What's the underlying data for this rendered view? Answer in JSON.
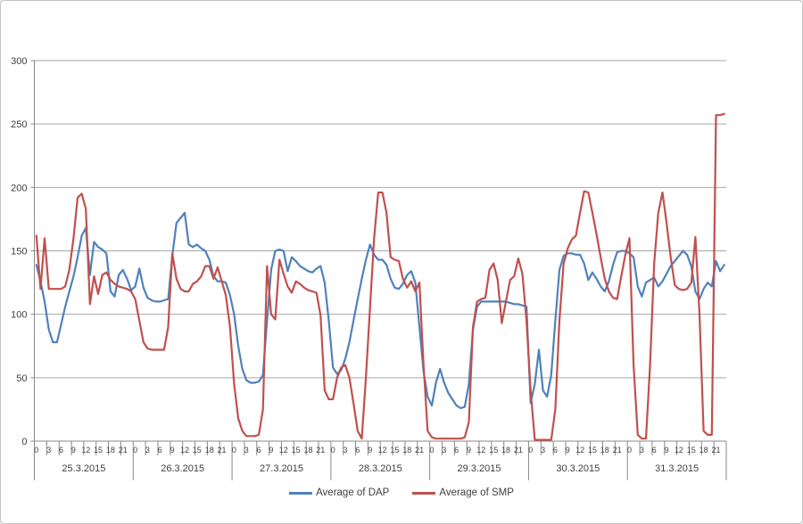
{
  "legend": {
    "dap_label": "Average of DAP",
    "smp_label": "Average of SMP"
  },
  "chart_data": {
    "type": "line",
    "title": "",
    "xlabel": "",
    "ylabel": "",
    "ylim": [
      0,
      300
    ],
    "ytick_step": 50,
    "grid": "horizontal",
    "legend_position": "bottom",
    "categories": [
      "25.3.2015",
      "26.3.2015",
      "27.3.2015",
      "28.3.2015",
      "29.3.2015",
      "30.3.2015",
      "31.3.2015"
    ],
    "hour_ticks": [
      0,
      3,
      6,
      9,
      12,
      15,
      18,
      21
    ],
    "points_per_day": 24,
    "colors": {
      "grid": "#a6a6a6",
      "axis": "#898989",
      "text": "#3f3f3f",
      "dap": "#4f81bd",
      "smp": "#c0504d"
    },
    "series": [
      {
        "name": "Average of DAP",
        "color": "#4f81bd",
        "values": [
          139,
          126,
          110,
          88,
          78,
          78,
          92,
          106,
          118,
          130,
          145,
          162,
          168,
          131,
          157,
          153,
          151,
          148,
          118,
          114,
          131,
          135,
          128,
          119,
          122,
          136,
          121,
          113,
          111,
          110,
          110,
          111,
          112,
          146,
          172,
          176,
          180,
          155,
          153,
          155,
          152,
          150,
          143,
          130,
          126,
          126,
          125,
          115,
          100,
          75,
          57,
          48,
          46,
          46,
          47,
          52,
          95,
          135,
          150,
          151,
          150,
          134,
          145,
          142,
          138,
          136,
          134,
          133,
          136,
          138,
          125,
          95,
          58,
          53,
          56,
          65,
          78,
          95,
          112,
          128,
          143,
          155,
          147,
          143,
          143,
          139,
          128,
          121,
          120,
          124,
          131,
          134,
          125,
          90,
          55,
          35,
          28,
          46,
          57,
          46,
          38,
          33,
          28,
          26,
          27,
          45,
          88,
          106,
          110,
          110,
          110,
          110,
          110,
          110,
          110,
          109,
          108,
          108,
          107,
          106,
          30,
          45,
          72,
          40,
          35,
          52,
          95,
          135,
          146,
          148,
          148,
          147,
          147,
          140,
          127,
          133,
          128,
          122,
          118,
          126,
          139,
          149,
          150,
          150,
          148,
          145,
          122,
          114,
          125,
          127,
          129,
          122,
          126,
          132,
          138,
          142,
          146,
          150,
          147,
          138,
          118,
          112,
          120,
          125,
          122,
          142,
          134,
          139
        ]
      },
      {
        "name": "Average of SMP",
        "color": "#c0504d",
        "values": [
          162,
          120,
          160,
          120,
          120,
          120,
          120,
          122,
          135,
          160,
          192,
          195,
          183,
          108,
          130,
          116,
          131,
          133,
          127,
          124,
          122,
          121,
          120,
          118,
          112,
          95,
          78,
          73,
          72,
          72,
          72,
          72,
          90,
          148,
          128,
          120,
          118,
          118,
          124,
          126,
          130,
          138,
          138,
          128,
          137,
          126,
          115,
          90,
          45,
          18,
          8,
          4,
          4,
          4,
          5,
          25,
          138,
          100,
          96,
          143,
          132,
          122,
          117,
          126,
          124,
          121,
          119,
          118,
          117,
          99,
          40,
          33,
          33,
          50,
          58,
          60,
          50,
          30,
          8,
          2,
          50,
          105,
          160,
          196,
          196,
          180,
          145,
          143,
          142,
          128,
          121,
          126,
          118,
          125,
          60,
          8,
          3,
          2,
          2,
          2,
          2,
          2,
          2,
          2,
          3,
          15,
          90,
          110,
          112,
          113,
          135,
          140,
          127,
          93,
          110,
          127,
          130,
          144,
          132,
          95,
          40,
          1,
          1,
          1,
          1,
          1,
          25,
          95,
          140,
          152,
          159,
          162,
          180,
          197,
          196,
          180,
          163,
          145,
          128,
          118,
          113,
          112,
          130,
          147,
          160,
          60,
          5,
          2,
          2,
          60,
          140,
          180,
          196,
          172,
          145,
          123,
          120,
          119,
          120,
          125,
          161,
          100,
          8,
          5,
          5,
          257,
          257,
          258
        ]
      }
    ]
  }
}
